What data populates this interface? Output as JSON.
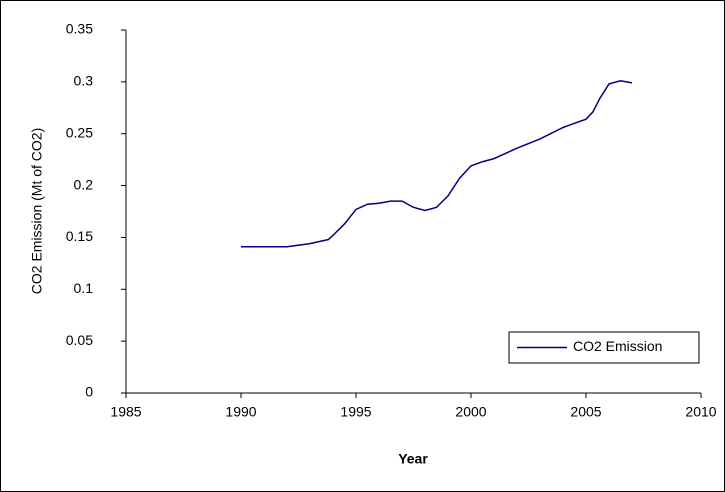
{
  "chart_data": {
    "type": "line",
    "x_label": "Year",
    "y_label": "CO2 Emission (Mt of CO2)",
    "x": [
      1990,
      1991,
      1992,
      1993,
      1993.8,
      1994,
      1994.5,
      1995,
      1995.5,
      1996,
      1996.5,
      1997,
      1997.5,
      1998,
      1998.5,
      1999,
      1999.5,
      2000,
      2000.5,
      2001,
      2001.5,
      2002,
      2003,
      2004,
      2004.5,
      2005,
      2005.3,
      2005.6,
      2006,
      2006.5,
      2007
    ],
    "series": [
      {
        "name": "CO2 Emission",
        "color": "#000080",
        "values": [
          0.141,
          0.141,
          0.141,
          0.144,
          0.148,
          0.152,
          0.163,
          0.177,
          0.182,
          0.183,
          0.185,
          0.185,
          0.179,
          0.176,
          0.179,
          0.19,
          0.207,
          0.219,
          0.223,
          0.226,
          0.231,
          0.236,
          0.245,
          0.256,
          0.26,
          0.264,
          0.271,
          0.284,
          0.298,
          0.301,
          0.299
        ]
      }
    ],
    "xlim": [
      1985,
      2010
    ],
    "xticks": [
      1985,
      1990,
      1995,
      2000,
      2005,
      2010
    ],
    "ylim": [
      0,
      0.35
    ],
    "yticks": [
      0,
      0.05,
      0.1,
      0.15,
      0.2,
      0.25,
      0.3,
      0.35
    ],
    "grid": false,
    "legend": "lower right"
  }
}
